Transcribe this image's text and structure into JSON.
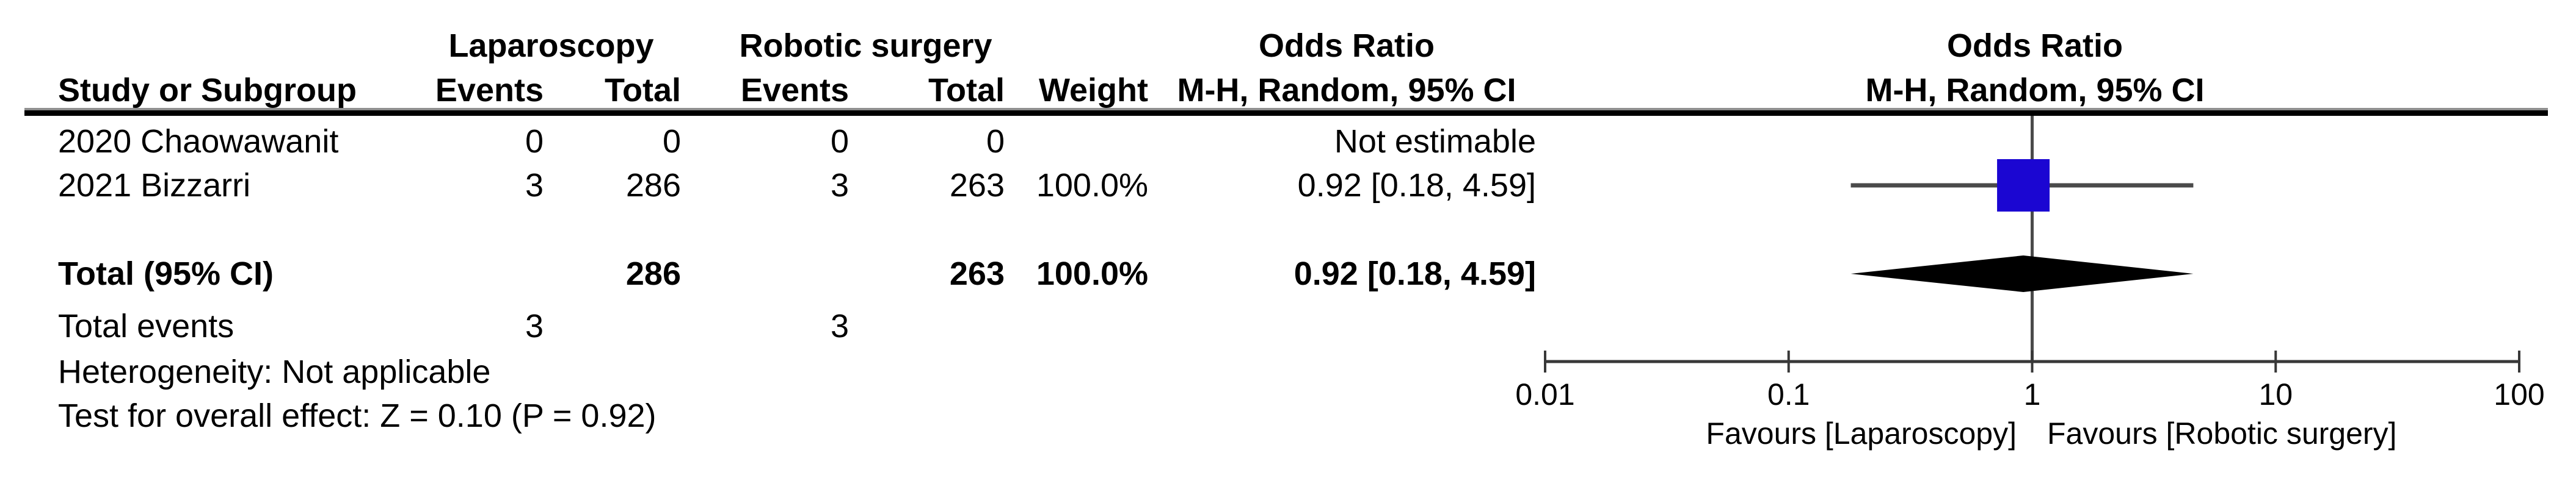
{
  "table": {
    "header": {
      "study": "Study or Subgroup",
      "group1": "Laparoscopy",
      "group2": "Robotic surgery",
      "events": "Events",
      "total": "Total",
      "weight": "Weight",
      "or_title": "Odds Ratio",
      "or_subtitle": "M-H, Random, 95% CI",
      "plot_title": "Odds Ratio",
      "plot_subtitle": "M-H, Random, 95% CI"
    },
    "rows": [
      {
        "study": "2020 Chaowawanit",
        "e1": "0",
        "t1": "0",
        "e2": "0",
        "t2": "0",
        "weight": "",
        "or": "Not estimable"
      },
      {
        "study": "2021 Bizzarri",
        "e1": "3",
        "t1": "286",
        "e2": "3",
        "t2": "263",
        "weight": "100.0%",
        "or": "0.92 [0.18, 4.59]"
      }
    ],
    "total_row": {
      "label": "Total (95% CI)",
      "t1": "286",
      "t2": "263",
      "weight": "100.0%",
      "or": "0.92 [0.18, 4.59]"
    },
    "total_events": {
      "label": "Total events",
      "e1": "3",
      "e2": "3"
    },
    "heterogeneity": "Heterogeneity: Not applicable",
    "overall_effect": "Test for overall effect: Z = 0.10 (P = 0.92)"
  },
  "chart_data": {
    "type": "forest",
    "effect_measure": "Odds Ratio",
    "method": "M-H, Random, 95% CI",
    "x_scale": "log",
    "axis": {
      "min": 0.01,
      "max": 100,
      "ticks": [
        "0.01",
        "0.1",
        "1",
        "10",
        "100"
      ]
    },
    "null_line": 1,
    "studies": [
      {
        "name": "2020 Chaowawanit",
        "or": null,
        "ci_low": null,
        "ci_high": null,
        "weight_pct": null,
        "note": "Not estimable"
      },
      {
        "name": "2021 Bizzarri",
        "or": 0.92,
        "ci_low": 0.18,
        "ci_high": 4.59,
        "weight_pct": 100.0
      }
    ],
    "total": {
      "label": "Total (95% CI)",
      "or": 0.92,
      "ci_low": 0.18,
      "ci_high": 4.59
    },
    "favours_left": "Favours [Laparoscopy]",
    "favours_right": "Favours [Robotic surgery]",
    "marker_color": "#1b06d2",
    "diamond_color": "#000000",
    "line_color": "#4a4a4a"
  }
}
